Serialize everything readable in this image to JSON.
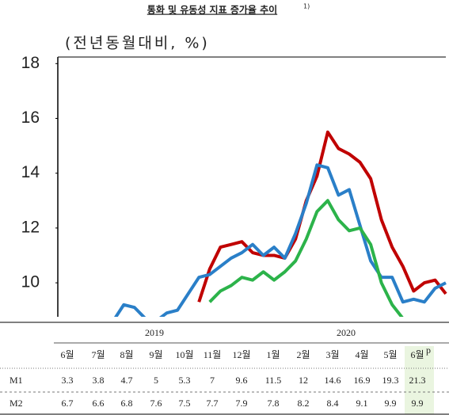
{
  "chart_data": {
    "type": "line",
    "title": "통화 및 유동성 지표 증가율 추이",
    "title_note": "1)",
    "subtitle": "(전년동월대비, %)",
    "categories": [
      null,
      null,
      null,
      null,
      null,
      null,
      null,
      null,
      null,
      null,
      null,
      null,
      null,
      null,
      null,
      null,
      null,
      null,
      null,
      null,
      null,
      null,
      null,
      null,
      null,
      null,
      null,
      null,
      null,
      null,
      null,
      null,
      null,
      null,
      null,
      null,
      null
    ],
    "ylim": [
      8.76,
      18.24
    ],
    "yticks": [
      10,
      12,
      14,
      16,
      18
    ],
    "series": [
      {
        "color": "#c00000",
        "values": [
          null,
          null,
          null,
          null,
          null,
          null,
          null,
          null,
          null,
          null,
          null,
          null,
          null,
          9.3,
          10.5,
          11.3,
          11.4,
          11.5,
          11.1,
          11.0,
          11.0,
          10.9,
          11.6,
          13.0,
          13.9,
          15.5,
          14.9,
          14.7,
          14.4,
          13.8,
          12.3,
          11.3,
          10.6,
          9.7,
          10.0,
          10.1,
          9.6
        ]
      },
      {
        "color": "#2a7fc8",
        "values": [
          null,
          null,
          null,
          null,
          null,
          8.6,
          9.2,
          9.1,
          8.7,
          8.6,
          8.9,
          9.0,
          9.6,
          10.2,
          10.3,
          10.6,
          10.9,
          11.1,
          11.4,
          11.0,
          11.3,
          10.9,
          11.8,
          12.9,
          14.3,
          14.2,
          13.2,
          13.4,
          12.1,
          10.8,
          10.2,
          10.2,
          9.3,
          9.4,
          9.3,
          9.8,
          10.0
        ]
      },
      {
        "color": "#2cb34a",
        "values": [
          null,
          null,
          null,
          null,
          null,
          null,
          null,
          null,
          null,
          null,
          null,
          null,
          null,
          null,
          9.3,
          9.7,
          9.9,
          10.2,
          10.1,
          10.4,
          10.1,
          10.4,
          10.8,
          11.6,
          12.6,
          13.0,
          12.3,
          11.9,
          12.0,
          11.4,
          10.0,
          9.2,
          8.7,
          null,
          null,
          null,
          null
        ]
      }
    ]
  },
  "table": {
    "years": [
      "2019",
      "2020"
    ],
    "months": [
      "6월",
      "7월",
      "8월",
      "9월",
      "10월",
      "11월",
      "12월",
      "1월",
      "2월",
      "3월",
      "4월",
      "5월",
      "6월"
    ],
    "last_note": "p",
    "rows": [
      {
        "label": "M1",
        "values": [
          3.3,
          3.8,
          4.7,
          5.0,
          5.3,
          7.0,
          9.6,
          11.5,
          12.0,
          14.6,
          16.9,
          19.3,
          21.3
        ]
      },
      {
        "label": "M2",
        "values": [
          6.7,
          6.6,
          6.8,
          7.6,
          7.5,
          7.7,
          7.9,
          7.8,
          8.2,
          8.4,
          9.1,
          9.9,
          9.9
        ]
      }
    ]
  }
}
